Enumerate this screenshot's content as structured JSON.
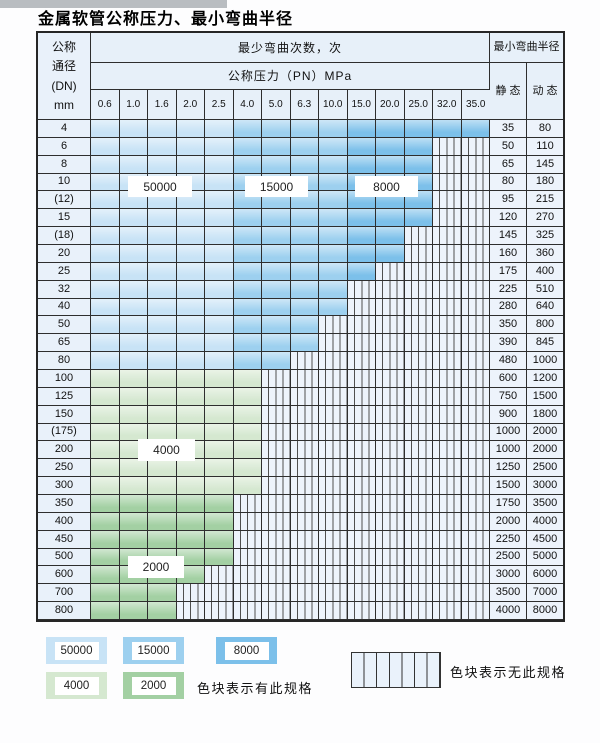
{
  "page": {
    "title": "金属软管公称压力、最小弯曲半径"
  },
  "table": {
    "header": {
      "dn_lines": [
        "公称",
        "通径",
        "(DN)",
        "mm"
      ],
      "bend_cycles": "最少弯曲次数，次",
      "pressure": "公称压力（PN）MPa",
      "min_radius": "最小弯曲半径",
      "static": "静 态",
      "dynamic": "动 态",
      "pressures": [
        "0.6",
        "1.0",
        "1.6",
        "2.0",
        "2.5",
        "4.0",
        "5.0",
        "6.3",
        "10.0",
        "15.0",
        "20.0",
        "25.0",
        "32.0",
        "35.0"
      ]
    },
    "rows": [
      {
        "dn": "4",
        "static": "35",
        "dynamic": "80",
        "colored": 14
      },
      {
        "dn": "6",
        "static": "50",
        "dynamic": "110",
        "colored": 12
      },
      {
        "dn": "8",
        "static": "65",
        "dynamic": "145",
        "colored": 12
      },
      {
        "dn": "10",
        "static": "80",
        "dynamic": "180",
        "colored": 12
      },
      {
        "dn": "(12)",
        "static": "95",
        "dynamic": "215",
        "colored": 12
      },
      {
        "dn": "15",
        "static": "120",
        "dynamic": "270",
        "colored": 12
      },
      {
        "dn": "(18)",
        "static": "145",
        "dynamic": "325",
        "colored": 11
      },
      {
        "dn": "20",
        "static": "160",
        "dynamic": "360",
        "colored": 11
      },
      {
        "dn": "25",
        "static": "175",
        "dynamic": "400",
        "colored": 10
      },
      {
        "dn": "32",
        "static": "225",
        "dynamic": "510",
        "colored": 9
      },
      {
        "dn": "40",
        "static": "280",
        "dynamic": "640",
        "colored": 9
      },
      {
        "dn": "50",
        "static": "350",
        "dynamic": "800",
        "colored": 8
      },
      {
        "dn": "65",
        "static": "390",
        "dynamic": "845",
        "colored": 8
      },
      {
        "dn": "80",
        "static": "480",
        "dynamic": "1000",
        "colored": 7
      },
      {
        "dn": "100",
        "static": "600",
        "dynamic": "1200",
        "colored": 6
      },
      {
        "dn": "125",
        "static": "750",
        "dynamic": "1500",
        "colored": 6
      },
      {
        "dn": "150",
        "static": "900",
        "dynamic": "1800",
        "colored": 6
      },
      {
        "dn": "(175)",
        "static": "1000",
        "dynamic": "2000",
        "colored": 6
      },
      {
        "dn": "200",
        "static": "1000",
        "dynamic": "2000",
        "colored": 6
      },
      {
        "dn": "250",
        "static": "1250",
        "dynamic": "2500",
        "colored": 6
      },
      {
        "dn": "300",
        "static": "1500",
        "dynamic": "3000",
        "colored": 6
      },
      {
        "dn": "350",
        "static": "1750",
        "dynamic": "3500",
        "colored": 5
      },
      {
        "dn": "400",
        "static": "2000",
        "dynamic": "4000",
        "colored": 5
      },
      {
        "dn": "450",
        "static": "2250",
        "dynamic": "4500",
        "colored": 5
      },
      {
        "dn": "500",
        "static": "2500",
        "dynamic": "5000",
        "colored": 5
      },
      {
        "dn": "600",
        "static": "3000",
        "dynamic": "6000",
        "colored": 4
      },
      {
        "dn": "700",
        "static": "3500",
        "dynamic": "7000",
        "colored": 3
      },
      {
        "dn": "800",
        "static": "4000",
        "dynamic": "8000",
        "colored": 3
      }
    ],
    "zone_map": {
      "blue_50000_last_col_index": 4,
      "blue_15000_last_col_index": 8,
      "green_4000_rows": [
        14,
        20
      ],
      "green_2000_rows": [
        21,
        27
      ]
    }
  },
  "overlay_labels": {
    "b50000": "50000",
    "b15000": "15000",
    "b8000": "8000",
    "g4000": "4000",
    "g2000": "2000"
  },
  "legend": {
    "values": [
      "50000",
      "15000",
      "8000",
      "4000",
      "2000"
    ],
    "has_spec": "色块表示有此规格",
    "no_spec": "色块表示无此规格"
  },
  "colors": {
    "zone_50000": "#c8e3f6",
    "zone_15000": "#9dd0ef",
    "zone_8000": "#7cc0ea",
    "zone_4000": "#d5e8d0",
    "zone_2000": "#a3d0a3",
    "hatch_bg": "#edf3fb",
    "hatch_line": "#4f4f4f",
    "header_bg": "#e7f0f9",
    "grid_line": "#2e2e2e"
  }
}
